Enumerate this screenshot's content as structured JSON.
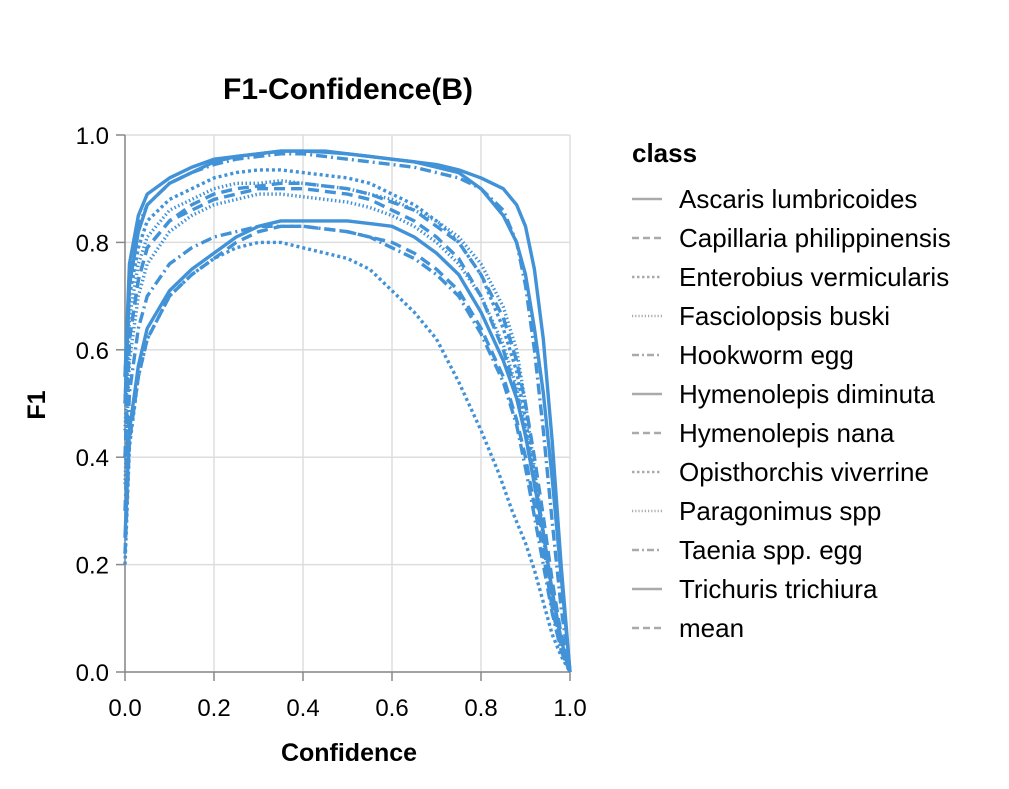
{
  "chart_data": {
    "type": "line",
    "title": "F1-Confidence(B)",
    "xlabel": "Confidence",
    "ylabel": "F1",
    "xlim": [
      0.0,
      1.0
    ],
    "ylim": [
      0.0,
      1.0
    ],
    "x_ticks": [
      "0.0",
      "0.2",
      "0.4",
      "0.6",
      "0.8",
      "1.0"
    ],
    "y_ticks": [
      "0.0",
      "0.2",
      "0.4",
      "0.6",
      "0.8",
      "1.0"
    ],
    "grid": true,
    "line_color": "#4292d8",
    "legend": {
      "title": "class",
      "placement": "right"
    },
    "series": [
      {
        "name": "Ascaris lumbricoides",
        "dash": "solid",
        "x": [
          0.0,
          0.01,
          0.03,
          0.05,
          0.1,
          0.15,
          0.2,
          0.25,
          0.3,
          0.35,
          0.4,
          0.45,
          0.5,
          0.55,
          0.6,
          0.65,
          0.7,
          0.75,
          0.8,
          0.85,
          0.88,
          0.9,
          0.92,
          0.94,
          0.96,
          0.98,
          1.0
        ],
        "y": [
          0.5,
          0.72,
          0.82,
          0.87,
          0.91,
          0.93,
          0.95,
          0.96,
          0.965,
          0.97,
          0.97,
          0.968,
          0.965,
          0.96,
          0.955,
          0.95,
          0.94,
          0.93,
          0.9,
          0.85,
          0.8,
          0.74,
          0.64,
          0.52,
          0.36,
          0.18,
          0.0
        ]
      },
      {
        "name": "Capillaria philippinensis",
        "dash": "dashed",
        "x": [
          0.0,
          0.01,
          0.03,
          0.05,
          0.1,
          0.15,
          0.2,
          0.25,
          0.3,
          0.35,
          0.4,
          0.45,
          0.5,
          0.55,
          0.6,
          0.65,
          0.7,
          0.75,
          0.8,
          0.85,
          0.88,
          0.9,
          0.92,
          0.94,
          0.96,
          0.98,
          1.0
        ],
        "y": [
          0.4,
          0.62,
          0.73,
          0.79,
          0.84,
          0.86,
          0.88,
          0.89,
          0.9,
          0.9,
          0.9,
          0.895,
          0.89,
          0.88,
          0.86,
          0.84,
          0.81,
          0.77,
          0.7,
          0.6,
          0.52,
          0.44,
          0.35,
          0.24,
          0.13,
          0.05,
          0.0
        ]
      },
      {
        "name": "Enterobius vermicularis",
        "dash": "dotted",
        "x": [
          0.0,
          0.01,
          0.03,
          0.05,
          0.1,
          0.15,
          0.2,
          0.25,
          0.3,
          0.35,
          0.4,
          0.45,
          0.5,
          0.55,
          0.6,
          0.65,
          0.7,
          0.75,
          0.8,
          0.84,
          0.87,
          0.9,
          0.92,
          0.94,
          0.96,
          0.98,
          1.0
        ],
        "y": [
          0.2,
          0.42,
          0.55,
          0.62,
          0.7,
          0.74,
          0.77,
          0.79,
          0.8,
          0.8,
          0.79,
          0.78,
          0.77,
          0.75,
          0.71,
          0.67,
          0.62,
          0.54,
          0.45,
          0.37,
          0.3,
          0.24,
          0.19,
          0.13,
          0.07,
          0.03,
          0.0
        ]
      },
      {
        "name": "Fasciolopsis buski",
        "dash": "fine-dotted",
        "x": [
          0.0,
          0.01,
          0.03,
          0.05,
          0.1,
          0.15,
          0.2,
          0.25,
          0.3,
          0.35,
          0.4,
          0.45,
          0.5,
          0.55,
          0.6,
          0.65,
          0.7,
          0.75,
          0.8,
          0.85,
          0.88,
          0.9,
          0.92,
          0.94,
          0.96,
          0.98,
          1.0
        ],
        "y": [
          0.45,
          0.66,
          0.76,
          0.81,
          0.86,
          0.88,
          0.9,
          0.91,
          0.91,
          0.915,
          0.91,
          0.905,
          0.9,
          0.89,
          0.88,
          0.86,
          0.84,
          0.81,
          0.76,
          0.68,
          0.6,
          0.5,
          0.38,
          0.26,
          0.15,
          0.06,
          0.0
        ]
      },
      {
        "name": "Hookworm egg",
        "dash": "dash-dot",
        "x": [
          0.0,
          0.01,
          0.03,
          0.05,
          0.1,
          0.15,
          0.2,
          0.25,
          0.3,
          0.35,
          0.4,
          0.45,
          0.5,
          0.55,
          0.6,
          0.65,
          0.7,
          0.75,
          0.8,
          0.85,
          0.88,
          0.9,
          0.92,
          0.94,
          0.96,
          0.98,
          1.0
        ],
        "y": [
          0.55,
          0.74,
          0.83,
          0.87,
          0.91,
          0.93,
          0.945,
          0.955,
          0.96,
          0.965,
          0.965,
          0.96,
          0.955,
          0.95,
          0.945,
          0.94,
          0.93,
          0.92,
          0.9,
          0.86,
          0.8,
          0.72,
          0.6,
          0.45,
          0.28,
          0.12,
          0.0
        ]
      },
      {
        "name": "Hymenolepis diminuta",
        "dash": "solid",
        "x": [
          0.0,
          0.01,
          0.03,
          0.05,
          0.1,
          0.15,
          0.2,
          0.25,
          0.3,
          0.35,
          0.4,
          0.45,
          0.5,
          0.55,
          0.6,
          0.65,
          0.7,
          0.75,
          0.8,
          0.85,
          0.88,
          0.9,
          0.92,
          0.94,
          0.96,
          0.98,
          1.0
        ],
        "y": [
          0.25,
          0.45,
          0.57,
          0.64,
          0.71,
          0.75,
          0.78,
          0.81,
          0.83,
          0.84,
          0.84,
          0.84,
          0.84,
          0.835,
          0.83,
          0.81,
          0.78,
          0.74,
          0.67,
          0.58,
          0.51,
          0.44,
          0.35,
          0.26,
          0.15,
          0.06,
          0.0
        ]
      },
      {
        "name": "Hymenolepis nana",
        "dash": "dashed",
        "x": [
          0.0,
          0.01,
          0.03,
          0.05,
          0.1,
          0.15,
          0.2,
          0.25,
          0.3,
          0.35,
          0.4,
          0.45,
          0.5,
          0.55,
          0.6,
          0.65,
          0.7,
          0.75,
          0.8,
          0.85,
          0.88,
          0.9,
          0.92,
          0.94,
          0.96,
          0.98,
          1.0
        ],
        "y": [
          0.22,
          0.43,
          0.55,
          0.62,
          0.7,
          0.74,
          0.77,
          0.8,
          0.82,
          0.83,
          0.83,
          0.825,
          0.82,
          0.81,
          0.8,
          0.78,
          0.75,
          0.71,
          0.64,
          0.55,
          0.47,
          0.4,
          0.31,
          0.22,
          0.12,
          0.04,
          0.0
        ]
      },
      {
        "name": "Opisthorchis viverrine",
        "dash": "dotted",
        "x": [
          0.0,
          0.01,
          0.03,
          0.05,
          0.1,
          0.15,
          0.2,
          0.25,
          0.3,
          0.35,
          0.4,
          0.45,
          0.5,
          0.55,
          0.6,
          0.65,
          0.7,
          0.75,
          0.8,
          0.85,
          0.88,
          0.9,
          0.92,
          0.94,
          0.96,
          0.98,
          1.0
        ],
        "y": [
          0.5,
          0.7,
          0.79,
          0.84,
          0.88,
          0.9,
          0.92,
          0.93,
          0.935,
          0.935,
          0.93,
          0.925,
          0.92,
          0.91,
          0.89,
          0.87,
          0.84,
          0.8,
          0.74,
          0.64,
          0.56,
          0.47,
          0.37,
          0.26,
          0.15,
          0.06,
          0.0
        ]
      },
      {
        "name": "Paragonimus spp",
        "dash": "fine-dotted",
        "x": [
          0.0,
          0.01,
          0.03,
          0.05,
          0.1,
          0.15,
          0.2,
          0.25,
          0.3,
          0.35,
          0.4,
          0.45,
          0.5,
          0.55,
          0.6,
          0.65,
          0.7,
          0.75,
          0.8,
          0.85,
          0.88,
          0.9,
          0.92,
          0.94,
          0.96,
          0.98,
          1.0
        ],
        "y": [
          0.35,
          0.58,
          0.7,
          0.76,
          0.82,
          0.85,
          0.87,
          0.88,
          0.89,
          0.89,
          0.885,
          0.88,
          0.875,
          0.865,
          0.85,
          0.83,
          0.8,
          0.76,
          0.7,
          0.61,
          0.53,
          0.45,
          0.36,
          0.25,
          0.14,
          0.05,
          0.0
        ]
      },
      {
        "name": "Taenia spp. egg",
        "dash": "dash-dot",
        "x": [
          0.0,
          0.01,
          0.03,
          0.05,
          0.1,
          0.15,
          0.2,
          0.25,
          0.3,
          0.35,
          0.4,
          0.45,
          0.5,
          0.55,
          0.6,
          0.65,
          0.7,
          0.75,
          0.8,
          0.85,
          0.88,
          0.9,
          0.92,
          0.94,
          0.96,
          0.98,
          1.0
        ],
        "y": [
          0.3,
          0.52,
          0.64,
          0.7,
          0.76,
          0.79,
          0.81,
          0.82,
          0.83,
          0.83,
          0.83,
          0.825,
          0.82,
          0.81,
          0.79,
          0.77,
          0.74,
          0.7,
          0.63,
          0.54,
          0.46,
          0.38,
          0.29,
          0.2,
          0.11,
          0.04,
          0.0
        ]
      },
      {
        "name": "Trichuris trichiura",
        "dash": "solid",
        "x": [
          0.0,
          0.01,
          0.03,
          0.05,
          0.1,
          0.15,
          0.2,
          0.25,
          0.3,
          0.35,
          0.4,
          0.45,
          0.5,
          0.55,
          0.6,
          0.65,
          0.7,
          0.75,
          0.8,
          0.85,
          0.88,
          0.9,
          0.92,
          0.94,
          0.96,
          0.98,
          1.0
        ],
        "y": [
          0.55,
          0.76,
          0.85,
          0.89,
          0.92,
          0.94,
          0.955,
          0.96,
          0.965,
          0.97,
          0.97,
          0.97,
          0.965,
          0.96,
          0.955,
          0.95,
          0.945,
          0.935,
          0.92,
          0.9,
          0.87,
          0.83,
          0.75,
          0.62,
          0.43,
          0.2,
          0.0
        ]
      },
      {
        "name": "mean",
        "dash": "dashed",
        "x": [
          0.0,
          0.01,
          0.03,
          0.05,
          0.1,
          0.15,
          0.2,
          0.25,
          0.3,
          0.35,
          0.4,
          0.45,
          0.5,
          0.55,
          0.6,
          0.65,
          0.7,
          0.75,
          0.8,
          0.85,
          0.88,
          0.9,
          0.92,
          0.94,
          0.96,
          0.98,
          1.0
        ],
        "y": [
          0.4,
          0.62,
          0.73,
          0.79,
          0.84,
          0.87,
          0.89,
          0.9,
          0.905,
          0.91,
          0.91,
          0.905,
          0.9,
          0.89,
          0.875,
          0.86,
          0.83,
          0.8,
          0.74,
          0.66,
          0.58,
          0.5,
          0.4,
          0.29,
          0.17,
          0.07,
          0.0
        ]
      }
    ]
  }
}
